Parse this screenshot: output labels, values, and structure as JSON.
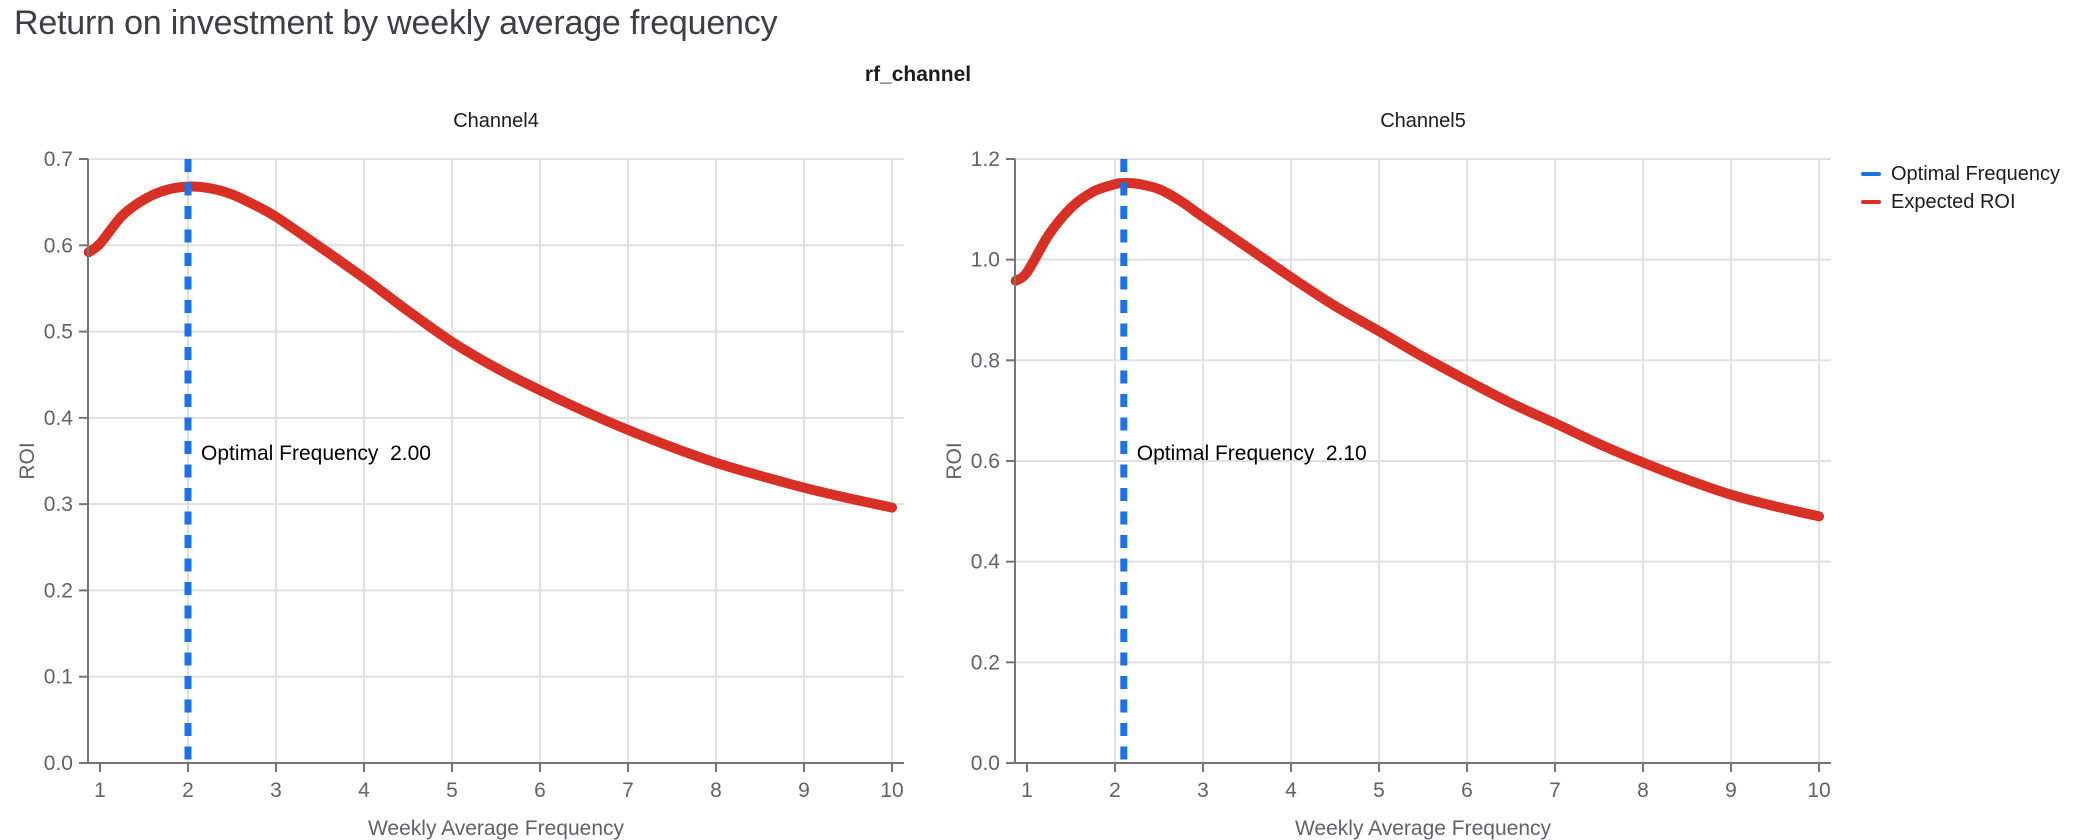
{
  "page": {
    "title": "Return on investment by weekly average frequency"
  },
  "figure": {
    "title": "rf_channel"
  },
  "legend": {
    "position": "top-right",
    "items": [
      {
        "label": "Optimal Frequency",
        "color": "#1a73e8"
      },
      {
        "label": "Expected ROI",
        "color": "#d93025"
      }
    ]
  },
  "colors": {
    "roi_curve": "#d93025",
    "optimal_frequency_line": "#1a73e8",
    "gridline": "#e0e0e0",
    "axis": "#757575",
    "tick_label": "#5f6368",
    "axis_title": "#5f6368",
    "subplot_title": "#1c1c1c",
    "annotation": "#000000"
  },
  "chart_data": [
    {
      "type": "line",
      "title": "Channel4",
      "xlabel": "Weekly Average Frequency",
      "ylabel": "ROI",
      "xlim": [
        1,
        10
      ],
      "ylim": [
        0,
        0.7
      ],
      "xticks": [
        1,
        2,
        3,
        4,
        5,
        6,
        7,
        8,
        9,
        10
      ],
      "yticks": [
        0,
        0.1,
        0.2,
        0.3,
        0.4,
        0.5,
        0.6,
        0.7
      ],
      "grid": true,
      "optimal_frequency": 2.0,
      "annotation": {
        "label": "Optimal Frequency",
        "value": "2.00"
      },
      "series": [
        {
          "name": "Expected ROI",
          "x": [
            0.87,
            1,
            1.25,
            1.5,
            1.75,
            2,
            2.25,
            2.5,
            2.75,
            3,
            3.5,
            4,
            4.5,
            5,
            5.5,
            6,
            6.5,
            7,
            7.5,
            8,
            8.5,
            9,
            9.5,
            10
          ],
          "y": [
            0.592,
            0.602,
            0.634,
            0.653,
            0.664,
            0.668,
            0.666,
            0.659,
            0.647,
            0.633,
            0.598,
            0.562,
            0.524,
            0.488,
            0.458,
            0.432,
            0.408,
            0.386,
            0.366,
            0.348,
            0.333,
            0.319,
            0.307,
            0.296
          ]
        }
      ]
    },
    {
      "type": "line",
      "title": "Channel5",
      "xlabel": "Weekly Average Frequency",
      "ylabel": "ROI",
      "xlim": [
        1,
        10
      ],
      "ylim": [
        0,
        1.2
      ],
      "xticks": [
        1,
        2,
        3,
        4,
        5,
        6,
        7,
        8,
        9,
        10
      ],
      "yticks": [
        0,
        0.2,
        0.4,
        0.6,
        0.8,
        1.0,
        1.2
      ],
      "grid": true,
      "optimal_frequency": 2.1,
      "annotation": {
        "label": "Optimal Frequency",
        "value": "2.10"
      },
      "series": [
        {
          "name": "Expected ROI",
          "x": [
            0.87,
            1,
            1.25,
            1.5,
            1.75,
            2,
            2.1,
            2.25,
            2.5,
            2.75,
            3,
            3.5,
            4,
            4.5,
            5,
            5.5,
            6,
            6.5,
            7,
            7.5,
            8,
            8.5,
            9,
            9.5,
            10
          ],
          "y": [
            0.958,
            0.975,
            1.05,
            1.103,
            1.135,
            1.15,
            1.152,
            1.151,
            1.14,
            1.116,
            1.085,
            1.025,
            0.965,
            0.908,
            0.858,
            0.807,
            0.76,
            0.715,
            0.675,
            0.634,
            0.597,
            0.563,
            0.533,
            0.51,
            0.49
          ]
        }
      ]
    }
  ]
}
